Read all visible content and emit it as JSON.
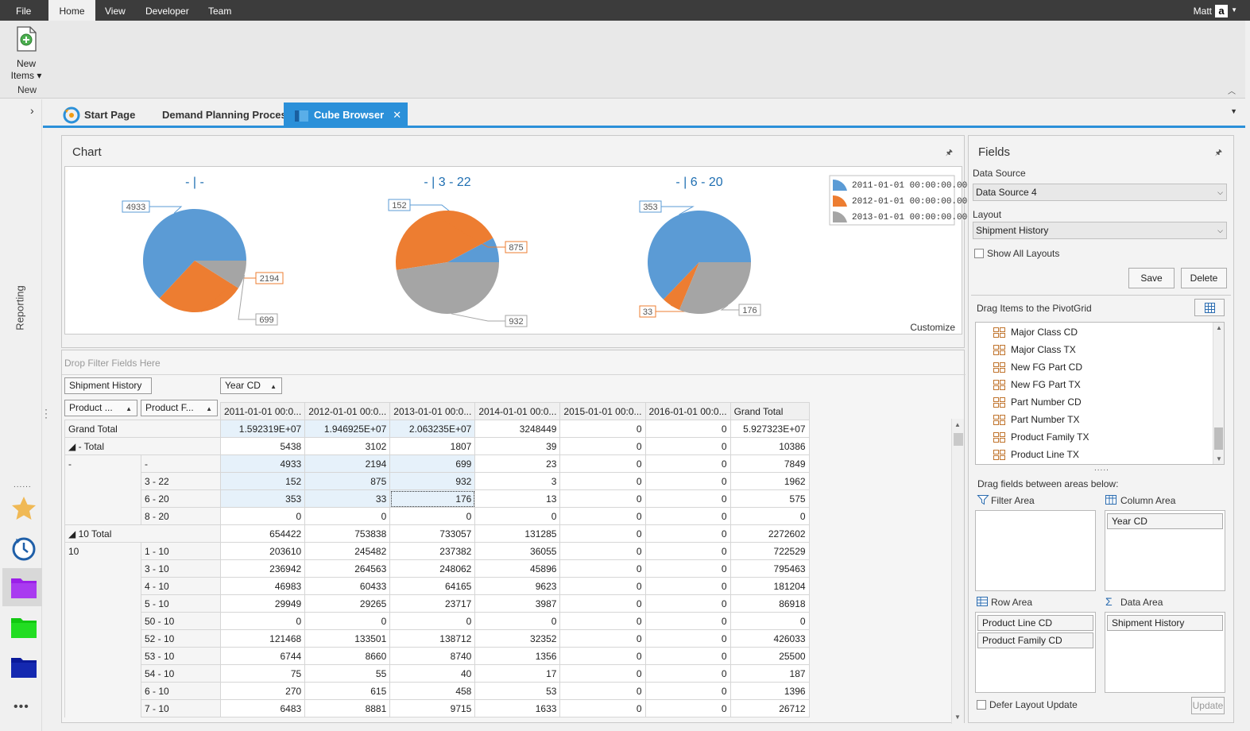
{
  "menubar": {
    "items": [
      "File",
      "Home",
      "View",
      "Developer",
      "Team"
    ],
    "active": "Home",
    "user": "Matt",
    "logo_letter": "a"
  },
  "ribbon": {
    "new_items_label": "New Items",
    "group_label": "New"
  },
  "sidebar": {
    "label": "Reporting"
  },
  "tabs": [
    {
      "label": "Start Page"
    },
    {
      "label": "Demand Planning Process"
    },
    {
      "label": "Cube Browser",
      "active": true
    }
  ],
  "chart_panel": {
    "title": "Chart",
    "customize_label": "Customize"
  },
  "chart_data": {
    "type": "pie",
    "legend": [
      "2011-01-01 00:00:00.000",
      "2012-01-01 00:00:00.000",
      "2013-01-01 00:00:00.000"
    ],
    "legend_position": "top-right",
    "colors": [
      "#5b9bd5",
      "#ed7d31",
      "#a5a5a5"
    ],
    "pies": [
      {
        "title": "- | -",
        "values": [
          4933,
          2194,
          699
        ]
      },
      {
        "title": "- | 3  - 22",
        "values": [
          152,
          875,
          932
        ]
      },
      {
        "title": "- | 6  - 20",
        "values": [
          353,
          33,
          176
        ]
      }
    ]
  },
  "pivot": {
    "filter_placeholder": "Drop Filter Fields Here",
    "data_field": "Shipment History",
    "column_field": "Year CD",
    "row_fields": [
      "Product ...",
      "Product F..."
    ],
    "columns": [
      "2011-01-01 00:0...",
      "2012-01-01 00:0...",
      "2013-01-01 00:0...",
      "2014-01-01 00:0...",
      "2015-01-01 00:0...",
      "2016-01-01 00:0...",
      "Grand Total"
    ],
    "rows": [
      {
        "a": "Grand Total",
        "b": "",
        "span": true,
        "v": [
          "1.592319E+07",
          "1.946925E+07",
          "2.063235E+07",
          "3248449",
          "0",
          "0",
          "5.927323E+07"
        ]
      },
      {
        "a": "◢  - Total",
        "b": "",
        "span": true,
        "v": [
          "5438",
          "3102",
          "1807",
          "39",
          "0",
          "0",
          "10386"
        ]
      },
      {
        "a": "-",
        "b": "-",
        "v": [
          "4933",
          "2194",
          "699",
          "23",
          "0",
          "0",
          "7849"
        ],
        "hl": true
      },
      {
        "a": "",
        "b": "3  - 22",
        "v": [
          "152",
          "875",
          "932",
          "3",
          "0",
          "0",
          "1962"
        ],
        "hl": true
      },
      {
        "a": "",
        "b": "6  - 20",
        "v": [
          "353",
          "33",
          "176",
          "13",
          "0",
          "0",
          "575"
        ],
        "hl": true
      },
      {
        "a": "",
        "b": "8  - 20",
        "v": [
          "0",
          "0",
          "0",
          "0",
          "0",
          "0",
          "0"
        ]
      },
      {
        "a": "◢  10 Total",
        "b": "",
        "span": true,
        "v": [
          "654422",
          "753838",
          "733057",
          "131285",
          "0",
          "0",
          "2272602"
        ]
      },
      {
        "a": "10",
        "b": "1  - 10",
        "v": [
          "203610",
          "245482",
          "237382",
          "36055",
          "0",
          "0",
          "722529"
        ]
      },
      {
        "a": "",
        "b": "3  - 10",
        "v": [
          "236942",
          "264563",
          "248062",
          "45896",
          "0",
          "0",
          "795463"
        ]
      },
      {
        "a": "",
        "b": "4  - 10",
        "v": [
          "46983",
          "60433",
          "64165",
          "9623",
          "0",
          "0",
          "181204"
        ]
      },
      {
        "a": "",
        "b": "5  - 10",
        "v": [
          "29949",
          "29265",
          "23717",
          "3987",
          "0",
          "0",
          "86918"
        ]
      },
      {
        "a": "",
        "b": "50  - 10",
        "v": [
          "0",
          "0",
          "0",
          "0",
          "0",
          "0",
          "0"
        ]
      },
      {
        "a": "",
        "b": "52  - 10",
        "v": [
          "121468",
          "133501",
          "138712",
          "32352",
          "0",
          "0",
          "426033"
        ]
      },
      {
        "a": "",
        "b": "53  - 10",
        "v": [
          "6744",
          "8660",
          "8740",
          "1356",
          "0",
          "0",
          "25500"
        ]
      },
      {
        "a": "",
        "b": "54  - 10",
        "v": [
          "75",
          "55",
          "40",
          "17",
          "0",
          "0",
          "187"
        ]
      },
      {
        "a": "",
        "b": "6  - 10",
        "v": [
          "270",
          "615",
          "458",
          "53",
          "0",
          "0",
          "1396"
        ]
      },
      {
        "a": "",
        "b": "7  - 10",
        "v": [
          "6483",
          "8881",
          "9715",
          "1633",
          "0",
          "0",
          "26712"
        ]
      }
    ]
  },
  "fields": {
    "title": "Fields",
    "data_source_label": "Data Source",
    "data_source_value": "Data Source 4",
    "layout_label": "Layout",
    "layout_value": "Shipment History",
    "show_all_layouts": "Show All Layouts",
    "save": "Save",
    "delete": "Delete",
    "drag_items_label": "Drag Items to the PivotGrid",
    "field_list": [
      "Major Class CD",
      "Major Class TX",
      "New FG Part CD",
      "New FG Part TX",
      "Part Number CD",
      "Part Number TX",
      "Product Family TX",
      "Product Line TX"
    ],
    "drag_between_label": "Drag fields between areas below:",
    "filter_area": "Filter Area",
    "column_area": "Column Area",
    "row_area": "Row Area",
    "data_area": "Data Area",
    "column_area_fields": [
      "Year CD"
    ],
    "row_area_fields": [
      "Product Line CD",
      "Product Family CD"
    ],
    "data_area_fields": [
      "Shipment History"
    ],
    "defer_label": "Defer Layout Update",
    "update": "Update"
  }
}
